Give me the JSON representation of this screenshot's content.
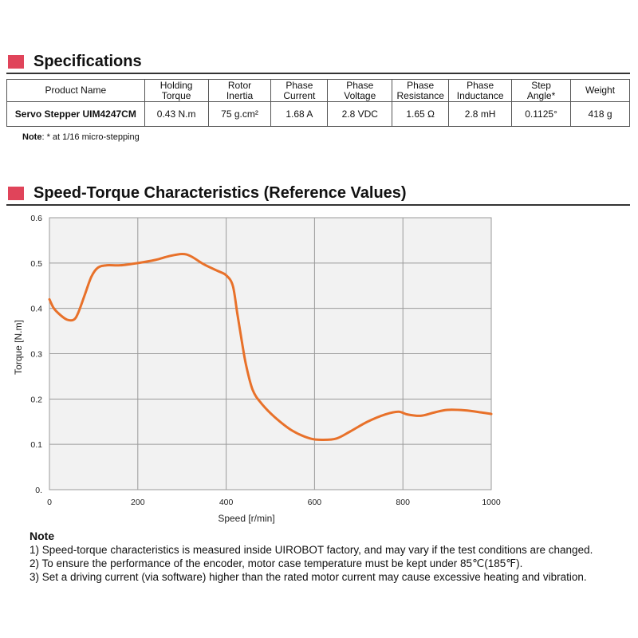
{
  "specifications": {
    "title": "Specifications",
    "headers": [
      "Product Name",
      "Holding\nTorque",
      "Rotor\nInertia",
      "Phase\nCurrent",
      "Phase\nVoltage",
      "Phase\nResistance",
      "Phase\nInductance",
      "Step\nAngle*",
      "Weight"
    ],
    "row": {
      "product_name": "Servo Stepper UIM4247CM",
      "holding_torque": "0.43 N.m",
      "rotor_inertia": "75 g.cm²",
      "phase_current": "1.68 A",
      "phase_voltage": "2.8 VDC",
      "phase_resistance": "1.65 Ω",
      "phase_inductance": "2.8 mH",
      "step_angle": "0.1125°",
      "weight": "418 g"
    },
    "note_label": "Note",
    "note_text": ": * at 1/16 micro-stepping"
  },
  "speed_torque": {
    "title": "Speed-Torque Characteristics (Reference Values)"
  },
  "chart_data": {
    "type": "line",
    "title": "",
    "xlabel": "Speed [r/min]",
    "ylabel": "Torque [N.m]",
    "xlim": [
      0,
      1000
    ],
    "ylim": [
      0,
      0.6
    ],
    "x_ticks": [
      "0",
      "200",
      "400",
      "600",
      "800",
      "1000"
    ],
    "y_ticks": [
      "0.",
      "0.1",
      "0.2",
      "0.3",
      "0.4",
      "0.5",
      "0.6"
    ],
    "grid": true,
    "line_color": "#e8712a",
    "series": [
      {
        "name": "",
        "x": [
          0,
          10,
          25,
          40,
          55,
          65,
          80,
          95,
          110,
          130,
          160,
          200,
          240,
          270,
          300,
          320,
          350,
          380,
          400,
          415,
          425,
          435,
          445,
          460,
          480,
          510,
          550,
          590,
          620,
          650,
          680,
          720,
          760,
          790,
          810,
          840,
          870,
          900,
          940,
          980,
          1000
        ],
        "y": [
          0.42,
          0.4,
          0.385,
          0.375,
          0.375,
          0.39,
          0.43,
          0.47,
          0.49,
          0.495,
          0.495,
          0.5,
          0.507,
          0.515,
          0.52,
          0.515,
          0.497,
          0.483,
          0.473,
          0.45,
          0.39,
          0.33,
          0.275,
          0.22,
          0.19,
          0.16,
          0.13,
          0.113,
          0.11,
          0.113,
          0.128,
          0.15,
          0.166,
          0.172,
          0.166,
          0.163,
          0.17,
          0.176,
          0.175,
          0.17,
          0.167
        ]
      }
    ]
  },
  "notes": {
    "title": "Note",
    "items": [
      "1)  Speed-torque characteristics is measured inside UIROBOT factory, and may vary if the test conditions are changed.",
      "2)  To ensure the performance of the encoder, motor case temperature must be kept under 85℃(185℉).",
      "3)  Set a driving current (via software) higher than the rated motor current may cause excessive heating and vibration."
    ]
  }
}
